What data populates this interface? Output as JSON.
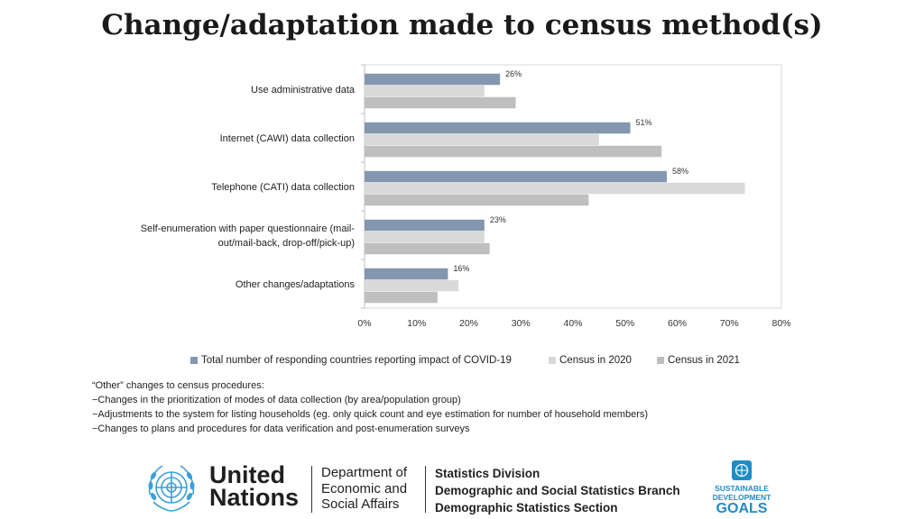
{
  "title": "Change/adaptation made to census method(s)",
  "chart_data": {
    "type": "bar",
    "orientation": "horizontal",
    "categories": [
      "Use administrative data",
      "Internet (CAWI) data collection",
      "Telephone (CATI) data collection",
      "Self-enumeration with paper questionnaire (mail-out/mail-back, drop-off/pick-up)",
      "Other changes/adaptations"
    ],
    "category_lines": [
      [
        "Use administrative data"
      ],
      [
        "Internet (CAWI) data collection"
      ],
      [
        "Telephone (CATI) data collection"
      ],
      [
        "Self-enumeration with paper questionnaire (mail-",
        "out/mail-back, drop-off/pick-up)"
      ],
      [
        "Other changes/adaptations"
      ]
    ],
    "series": [
      {
        "name": "Total number of responding countries reporting impact of COVID-19",
        "values": [
          26,
          51,
          58,
          23,
          16
        ],
        "labels": [
          "26%",
          "51%",
          "58%",
          "23%",
          "16%"
        ],
        "color": "#8497b0"
      },
      {
        "name": "Census in 2020",
        "values": [
          23,
          45,
          73,
          23,
          18
        ],
        "labels": null,
        "color": "#d9d9d9"
      },
      {
        "name": "Census in 2021",
        "values": [
          29,
          57,
          43,
          24,
          14
        ],
        "labels": null,
        "color": "#bfbfbf"
      }
    ],
    "xlim": [
      0,
      80
    ],
    "xticks": [
      "0%",
      "10%",
      "20%",
      "30%",
      "40%",
      "50%",
      "60%",
      "70%",
      "80%"
    ],
    "xlabel": "",
    "ylabel": "",
    "legend_position": "bottom"
  },
  "note": {
    "heading": "“Other” changes to census procedures:",
    "lines": [
      "−Changes in the prioritization of modes of data collection (by area/population group)",
      "−Adjustments to the system for listing households (eg. only quick count and eye estimation for number of household members)",
      "−Changes to plans and procedures for data verification and post-enumeration surveys"
    ]
  },
  "footer": {
    "un_line1": "United",
    "un_line2": "Nations",
    "desa_line1": "Department of",
    "desa_line2": "Economic and",
    "desa_line3": "Social Affairs",
    "stats_line1": "Statistics Division",
    "stats_line2": "Demographic and Social Statistics Branch",
    "stats_line3": "Demographic Statistics Section",
    "sdg_line1": "SUSTAINABLE",
    "sdg_line2": "DEVELOPMENT",
    "sdg_line3": "GOALS"
  }
}
